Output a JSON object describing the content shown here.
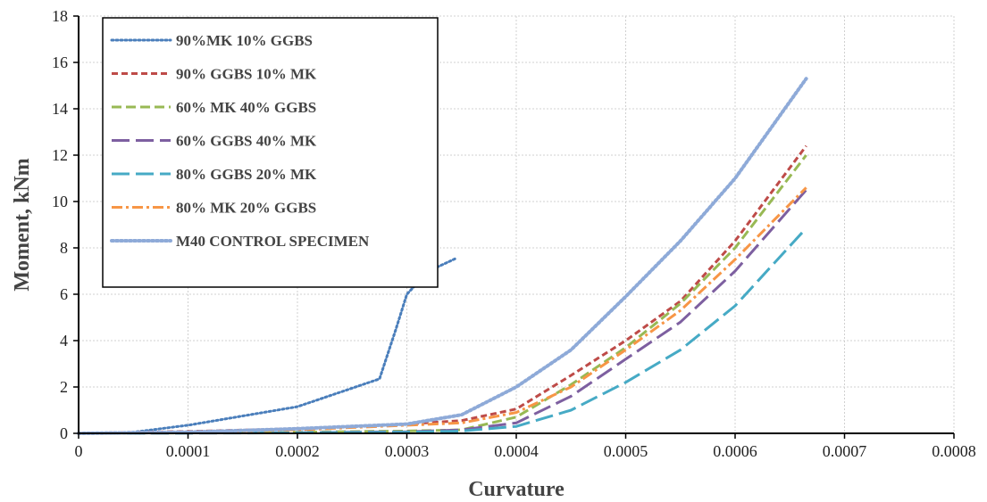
{
  "chart_data": {
    "type": "line",
    "xlabel": "Curvature",
    "ylabel": "Moment, kNm",
    "xlim": [
      0,
      0.0008
    ],
    "ylim": [
      0,
      18
    ],
    "x_ticks": [
      0,
      0.0001,
      0.0002,
      0.0003,
      0.0004,
      0.0005,
      0.0006,
      0.0007,
      0.0008
    ],
    "x_tick_labels": [
      "0",
      "0.0001",
      "0.0002",
      "0.0003",
      "0.0004",
      "0.0005",
      "0.0006",
      "0.0007",
      "0.0008"
    ],
    "y_ticks": [
      0,
      2,
      4,
      6,
      8,
      10,
      12,
      14,
      16,
      18
    ],
    "y_tick_labels": [
      "0",
      "2",
      "4",
      "6",
      "8",
      "10",
      "12",
      "14",
      "16",
      "18"
    ],
    "grid": true,
    "legend_position": "top-left",
    "series": [
      {
        "name": "90%MK 10% GGBS",
        "color": "#4a7ebb",
        "dash": "dotted",
        "points": [
          [
            0,
            0
          ],
          [
            5e-05,
            0.05
          ],
          [
            0.0001,
            0.35
          ],
          [
            0.00015,
            0.75
          ],
          [
            0.0002,
            1.15
          ],
          [
            0.00025,
            1.95
          ],
          [
            0.000275,
            2.35
          ],
          [
            0.00029,
            4.5
          ],
          [
            0.0003,
            6.0
          ],
          [
            0.00032,
            7.0
          ],
          [
            0.000345,
            7.55
          ]
        ]
      },
      {
        "name": "90% GGBS 10% MK",
        "color": "#be4b48",
        "dash": "short-dash",
        "points": [
          [
            0,
            0
          ],
          [
            0.0001,
            0.08
          ],
          [
            0.0002,
            0.2
          ],
          [
            0.0003,
            0.4
          ],
          [
            0.00035,
            0.55
          ],
          [
            0.0004,
            1.05
          ],
          [
            0.00045,
            2.5
          ],
          [
            0.0005,
            4.0
          ],
          [
            0.00055,
            5.7
          ],
          [
            0.0006,
            8.3
          ],
          [
            0.000665,
            12.4
          ]
        ]
      },
      {
        "name": "60% MK 40% GGBS",
        "color": "#98b954",
        "dash": "dash",
        "points": [
          [
            0,
            0
          ],
          [
            0.0001,
            0.02
          ],
          [
            0.0002,
            0.05
          ],
          [
            0.0003,
            0.1
          ],
          [
            0.00035,
            0.15
          ],
          [
            0.0004,
            0.7
          ],
          [
            0.00045,
            2.1
          ],
          [
            0.0005,
            3.7
          ],
          [
            0.00055,
            5.6
          ],
          [
            0.0006,
            8.0
          ],
          [
            0.000665,
            12.0
          ]
        ]
      },
      {
        "name": "60% GGBS 40% MK",
        "color": "#7d5fa0",
        "dash": "long-dash",
        "points": [
          [
            0,
            0
          ],
          [
            0.0001,
            0.01
          ],
          [
            0.0002,
            0.03
          ],
          [
            0.0003,
            0.07
          ],
          [
            0.00035,
            0.15
          ],
          [
            0.0004,
            0.45
          ],
          [
            0.00045,
            1.6
          ],
          [
            0.0005,
            3.2
          ],
          [
            0.00055,
            4.8
          ],
          [
            0.0006,
            7.0
          ],
          [
            0.000665,
            10.5
          ]
        ]
      },
      {
        "name": "80% GGBS 20% MK",
        "color": "#46aac5",
        "dash": "long-dash",
        "points": [
          [
            0,
            0
          ],
          [
            0.0001,
            0.01
          ],
          [
            0.0002,
            0.02
          ],
          [
            0.0003,
            0.05
          ],
          [
            0.00035,
            0.1
          ],
          [
            0.0004,
            0.3
          ],
          [
            0.00045,
            1.0
          ],
          [
            0.0005,
            2.2
          ],
          [
            0.00055,
            3.6
          ],
          [
            0.0006,
            5.5
          ],
          [
            0.000665,
            8.85
          ]
        ]
      },
      {
        "name": "80% MK 20% GGBS",
        "color": "#f79646",
        "dash": "dash-dot",
        "points": [
          [
            0,
            0
          ],
          [
            0.0001,
            0.05
          ],
          [
            0.0002,
            0.15
          ],
          [
            0.0003,
            0.35
          ],
          [
            0.00035,
            0.45
          ],
          [
            0.0004,
            0.9
          ],
          [
            0.00045,
            2.0
          ],
          [
            0.0005,
            3.6
          ],
          [
            0.00055,
            5.3
          ],
          [
            0.0006,
            7.5
          ],
          [
            0.000665,
            10.6
          ]
        ]
      },
      {
        "name": "M40 CONTROL SPECIMEN",
        "color": "#8eaad8",
        "dash": "dotted",
        "points": [
          [
            0,
            0
          ],
          [
            0.0001,
            0.05
          ],
          [
            0.0002,
            0.2
          ],
          [
            0.0003,
            0.4
          ],
          [
            0.00035,
            0.8
          ],
          [
            0.0004,
            2.0
          ],
          [
            0.00045,
            3.6
          ],
          [
            0.0005,
            5.9
          ],
          [
            0.00055,
            8.3
          ],
          [
            0.0006,
            11.0
          ],
          [
            0.000665,
            15.3
          ]
        ]
      }
    ]
  }
}
